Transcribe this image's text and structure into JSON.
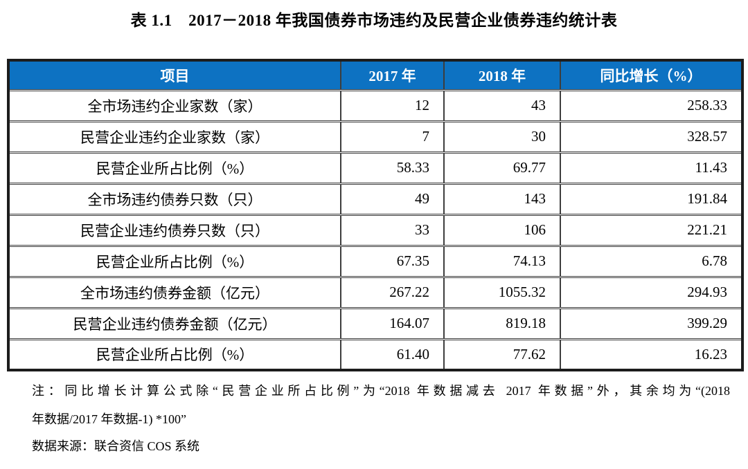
{
  "title": "表 1.1　2017－2018 年我国债券市场违约及民营企业债券违约统计表",
  "table": {
    "columns": {
      "item": "项目",
      "y2017": "2017 年",
      "y2018": "2018 年",
      "growth": "同比增长（%）"
    },
    "rows": [
      {
        "label": "全市场违约企业家数（家）",
        "y2017": "12",
        "y2018": "43",
        "growth": "258.33"
      },
      {
        "label": "民营企业违约企业家数（家）",
        "y2017": "7",
        "y2018": "30",
        "growth": "328.57"
      },
      {
        "label": "民营企业所占比例（%）",
        "y2017": "58.33",
        "y2018": "69.77",
        "growth": "11.43"
      },
      {
        "label": "全市场违约债券只数（只）",
        "y2017": "49",
        "y2018": "143",
        "growth": "191.84"
      },
      {
        "label": "民营企业违约债券只数（只）",
        "y2017": "33",
        "y2018": "106",
        "growth": "221.21"
      },
      {
        "label": "民营企业所占比例（%）",
        "y2017": "67.35",
        "y2018": "74.13",
        "growth": "6.78"
      },
      {
        "label": "全市场违约债券金额（亿元）",
        "y2017": "267.22",
        "y2018": "1055.32",
        "growth": "294.93"
      },
      {
        "label": "民营企业违约债券金额（亿元）",
        "y2017": "164.07",
        "y2018": "819.18",
        "growth": "399.29"
      },
      {
        "label": "民营企业所占比例（%）",
        "y2017": "61.40",
        "y2018": "77.62",
        "growth": "16.23"
      }
    ]
  },
  "notes": {
    "line1": "注：同比增长计算公式除“民营企业所占比例”为“2018 年数据减去 2017 年数据”外，其余均为“(2018",
    "line2": "年数据/2017 年数据-1) *100”",
    "source": "数据来源：联合资信 COS 系统"
  },
  "colors": {
    "header_bg": "#0d72c2",
    "header_text": "#ffffff",
    "grid_line": "#3d3d3d",
    "outer_border": "#1c1c1c"
  }
}
